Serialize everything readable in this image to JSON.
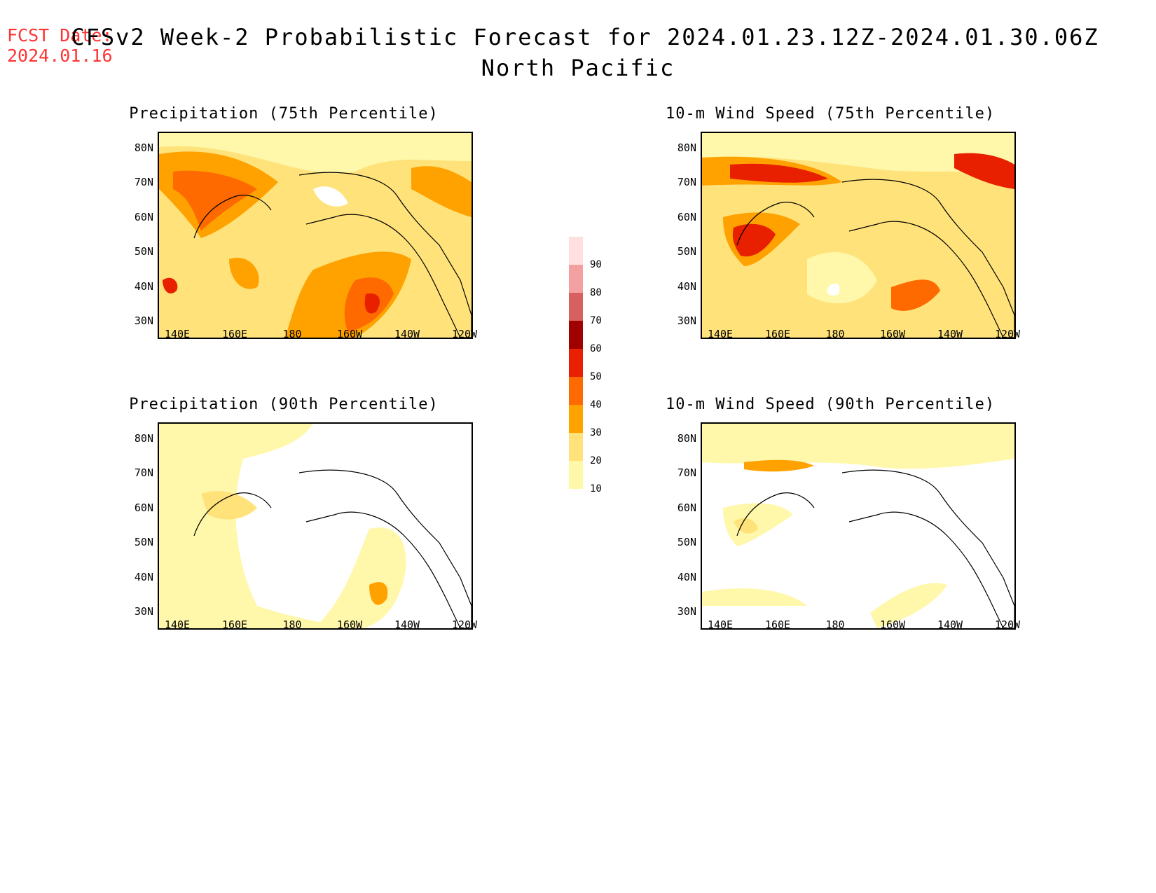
{
  "header": {
    "fcst_label": "FCST Date:",
    "fcst_date": "2024.01.16",
    "title": "CFSv2 Week-2 Probabilistic Forecast for 2024.01.23.12Z-2024.01.30.06Z",
    "region": "North Pacific"
  },
  "panels": [
    {
      "title": "Precipitation (75th Percentile)"
    },
    {
      "title": "10-m Wind Speed (75th Percentile)"
    },
    {
      "title": "Precipitation (90th Percentile)"
    },
    {
      "title": "10-m Wind Speed (90th Percentile)"
    }
  ],
  "axes": {
    "lat_labels": [
      "80N",
      "70N",
      "60N",
      "50N",
      "40N",
      "30N"
    ],
    "lon_labels": [
      "140E",
      "160E",
      "180",
      "160W",
      "140W",
      "120W"
    ]
  },
  "colorbar": {
    "levels": [
      "10",
      "20",
      "30",
      "40",
      "50",
      "60",
      "70",
      "80",
      "90"
    ],
    "colors": [
      "#fff7aa",
      "#ffe27a",
      "#ffa200",
      "#ff6a00",
      "#e82000",
      "#a00000",
      "#d96060",
      "#f4a0a0",
      "#ffe0e0"
    ]
  }
}
